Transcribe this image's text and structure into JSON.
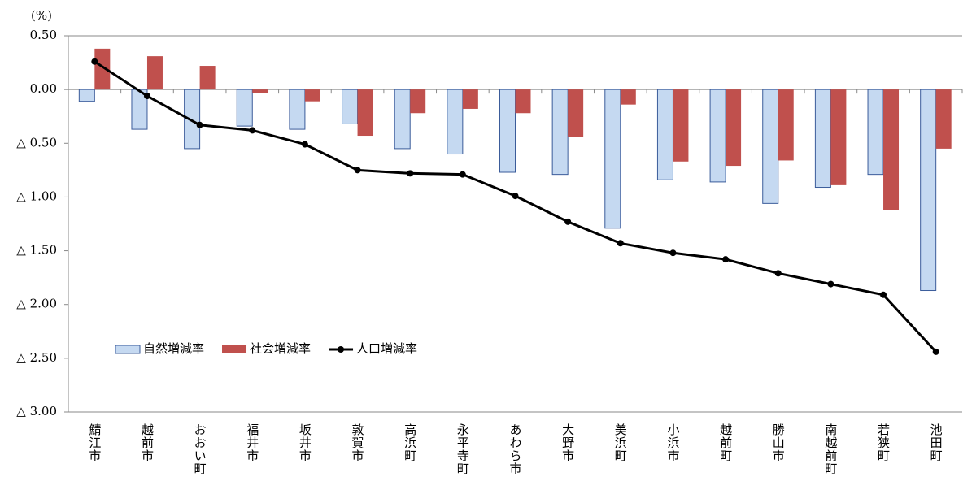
{
  "chart_data": {
    "type": "bar-line",
    "unit_label": "(%)",
    "categories": [
      "鯖江市",
      "越前市",
      "おおい町",
      "福井市",
      "坂井市",
      "敦賀市",
      "高浜町",
      "永平寺町",
      "あわら市",
      "大野市",
      "美浜町",
      "小浜市",
      "越前町",
      "勝山市",
      "南越前町",
      "若狭町",
      "池田町"
    ],
    "series": [
      {
        "name": "自然増減率",
        "type": "bar",
        "color": "#c5d9f1",
        "values": [
          -0.11,
          -0.37,
          -0.55,
          -0.34,
          -0.37,
          -0.32,
          -0.55,
          -0.6,
          -0.77,
          -0.79,
          -1.29,
          -0.84,
          -0.86,
          -1.06,
          -0.91,
          -0.79,
          -1.87
        ]
      },
      {
        "name": "社会増減率",
        "type": "bar",
        "color": "#c0504d",
        "values": [
          0.38,
          0.31,
          0.22,
          -0.03,
          -0.11,
          -0.43,
          -0.22,
          -0.18,
          -0.22,
          -0.44,
          -0.14,
          -0.67,
          -0.71,
          -0.66,
          -0.89,
          -1.12,
          -0.55
        ]
      },
      {
        "name": "人口増減率",
        "type": "line",
        "color": "#000000",
        "values": [
          0.26,
          -0.06,
          -0.33,
          -0.38,
          -0.51,
          -0.75,
          -0.78,
          -0.79,
          -0.99,
          -1.23,
          -1.43,
          -1.52,
          -1.58,
          -1.71,
          -1.81,
          -1.91,
          -2.44
        ]
      }
    ],
    "ylim": [
      -3.0,
      0.5
    ],
    "yticks": [
      {
        "value": 0.5,
        "label": "0.50"
      },
      {
        "value": 0,
        "label": "0.00"
      },
      {
        "value": -0.5,
        "label": "△ 0.50"
      },
      {
        "value": -1.0,
        "label": "△ 1.00"
      },
      {
        "value": -1.5,
        "label": "△ 1.50"
      },
      {
        "value": -2.0,
        "label": "△ 2.00"
      },
      {
        "value": -2.5,
        "label": "△ 2.50"
      },
      {
        "value": -3.0,
        "label": "△ 3.00"
      }
    ],
    "legend": "inside-lower-left"
  }
}
